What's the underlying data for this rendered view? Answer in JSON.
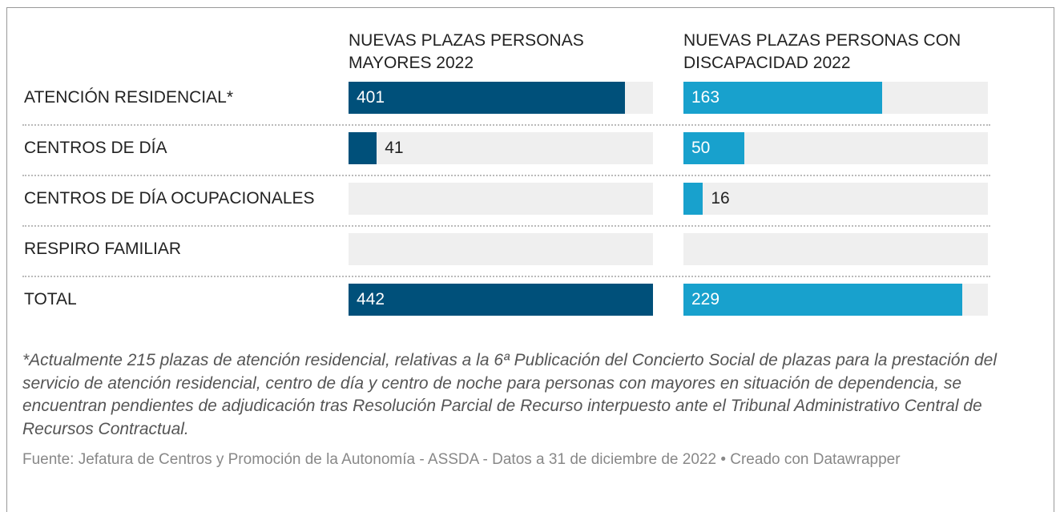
{
  "chart_data": {
    "type": "bar",
    "categories": [
      "ATENCIÓN RESIDENCIAL*",
      "CENTROS DE DÍA",
      "CENTROS DE DÍA OCUPACIONALES",
      "RESPIRO FAMILIAR",
      "TOTAL"
    ],
    "series": [
      {
        "name": "NUEVAS PLAZAS PERSONAS MAYORES 2022",
        "color": "#00507a",
        "values": [
          401,
          41,
          null,
          null,
          442
        ],
        "xlim": [
          0,
          442
        ]
      },
      {
        "name": "NUEVAS PLAZAS PERSONAS CON DISCAPACIDAD 2022",
        "color": "#18a1cd",
        "values": [
          163,
          50,
          16,
          null,
          229
        ],
        "xlim": [
          0,
          250
        ]
      }
    ],
    "note": "*Actualmente 215 plazas de atención residencial, relativas a la 6ª Publicación del Concierto Social de plazas para la prestación del servicio de atención residencial, centro de día y centro de noche para personas con mayores en situación de dependencia, se encuentran pendientes de adjudicación tras Resolución Parcial de Recurso interpuesto ante el Tribunal Administrativo Central de Recursos Contractual.",
    "source": "Fuente: Jefatura de Centros y Promoción de la Autonomía - ASSDA - Datos a 31 de diciembre de 2022 • Creado con Datawrapper"
  }
}
